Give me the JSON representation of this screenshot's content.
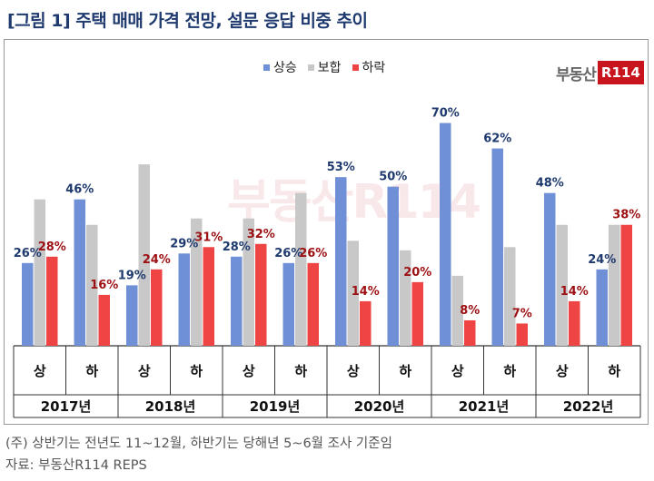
{
  "title": "[그림 1] 주택 매매 가격 전망, 설문 응답 비중 추이",
  "logo": {
    "text": "부동산",
    "badge": "R114"
  },
  "watermark": "부동산R114",
  "notes": {
    "line1": "(주) 상반기는 전년도 11~12월, 하반기는 당해년 5~6월 조사 기준임",
    "line2": "자료: 부동산R114 REPS"
  },
  "colors": {
    "up": "#6f8fd6",
    "same": "#c8c8c8",
    "down": "#ee4444",
    "up_label": "#1f3a6e",
    "down_label": "#9c0f12"
  },
  "chart_data": {
    "type": "bar",
    "legend": [
      "상승",
      "보합",
      "하락"
    ],
    "periods": [
      {
        "year": "2017년",
        "half": "상",
        "up": 26,
        "same": 46,
        "down": 28,
        "up_label": "26%",
        "down_label": "28%"
      },
      {
        "year": "2017년",
        "half": "하",
        "up": 46,
        "same": 38,
        "down": 16,
        "up_label": "46%",
        "down_label": "16%"
      },
      {
        "year": "2018년",
        "half": "상",
        "up": 19,
        "same": 57,
        "down": 24,
        "up_label": "19%",
        "down_label": "24%"
      },
      {
        "year": "2018년",
        "half": "하",
        "up": 29,
        "same": 40,
        "down": 31,
        "up_label": "29%",
        "down_label": "31%"
      },
      {
        "year": "2019년",
        "half": "상",
        "up": 28,
        "same": 40,
        "down": 32,
        "up_label": "28%",
        "down_label": "32%"
      },
      {
        "year": "2019년",
        "half": "하",
        "up": 26,
        "same": 48,
        "down": 26,
        "up_label": "26%",
        "down_label": "26%"
      },
      {
        "year": "2020년",
        "half": "상",
        "up": 53,
        "same": 33,
        "down": 14,
        "up_label": "53%",
        "down_label": "14%"
      },
      {
        "year": "2020년",
        "half": "하",
        "up": 50,
        "same": 30,
        "down": 20,
        "up_label": "50%",
        "down_label": "20%"
      },
      {
        "year": "2021년",
        "half": "상",
        "up": 70,
        "same": 22,
        "down": 8,
        "up_label": "70%",
        "down_label": "8%"
      },
      {
        "year": "2021년",
        "half": "하",
        "up": 62,
        "same": 31,
        "down": 7,
        "up_label": "62%",
        "down_label": "7%"
      },
      {
        "year": "2022년",
        "half": "상",
        "up": 48,
        "same": 38,
        "down": 14,
        "up_label": "48%",
        "down_label": "14%"
      },
      {
        "year": "2022년",
        "half": "하",
        "up": 24,
        "same": 38,
        "down": 38,
        "up_label": "24%",
        "down_label": "38%"
      }
    ],
    "years": [
      "2017년",
      "2018년",
      "2019년",
      "2020년",
      "2021년",
      "2022년"
    ],
    "ylim": [
      0,
      75
    ]
  }
}
